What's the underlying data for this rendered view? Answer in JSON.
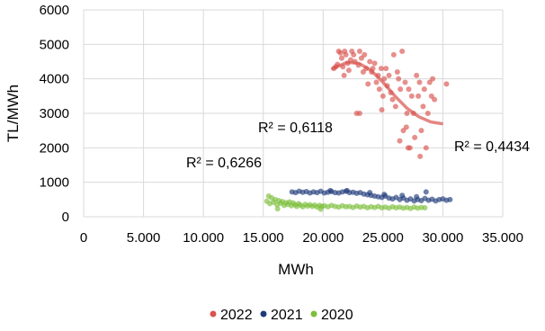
{
  "chart_data": {
    "type": "scatter",
    "title": "",
    "xlabel": "MWh",
    "ylabel": "TL/MWh",
    "xlim": [
      0,
      35000
    ],
    "ylim": [
      0,
      6000
    ],
    "x_ticks": [
      0,
      5000,
      10000,
      15000,
      20000,
      25000,
      30000,
      35000
    ],
    "x_tick_labels": [
      "0",
      "5.000",
      "10.000",
      "15.000",
      "20.000",
      "25.000",
      "30.000",
      "35.000"
    ],
    "y_ticks": [
      0,
      1000,
      2000,
      3000,
      4000,
      5000,
      6000
    ],
    "y_tick_labels": [
      "0",
      "1000",
      "2000",
      "3000",
      "4000",
      "5000",
      "6000"
    ],
    "grid": "vertical and horizontal",
    "legend_position": "bottom",
    "series": [
      {
        "name": "2022",
        "color": "#d9534f",
        "points": [
          [
            20900,
            4300
          ],
          [
            21050,
            4350
          ],
          [
            21200,
            4420
          ],
          [
            21300,
            4800
          ],
          [
            21450,
            4750
          ],
          [
            21550,
            4600
          ],
          [
            21650,
            4350
          ],
          [
            21800,
            4800
          ],
          [
            21900,
            4700
          ],
          [
            22050,
            4450
          ],
          [
            22150,
            4250
          ],
          [
            22300,
            4550
          ],
          [
            22400,
            4800
          ],
          [
            22550,
            4700
          ],
          [
            22650,
            4500
          ],
          [
            22800,
            3000
          ],
          [
            22950,
            4400
          ],
          [
            23050,
            4800
          ],
          [
            23200,
            4600
          ],
          [
            23350,
            4200
          ],
          [
            23450,
            4700
          ],
          [
            23600,
            4300
          ],
          [
            23750,
            3850
          ],
          [
            23900,
            4500
          ],
          [
            24050,
            4200
          ],
          [
            24150,
            4300
          ],
          [
            24300,
            4450
          ],
          [
            24450,
            3900
          ],
          [
            24600,
            4100
          ],
          [
            24700,
            3700
          ],
          [
            24850,
            4300
          ],
          [
            25000,
            3500
          ],
          [
            25100,
            4000
          ],
          [
            25250,
            4300
          ],
          [
            25350,
            3800
          ],
          [
            25500,
            4100
          ],
          [
            25650,
            3600
          ],
          [
            25800,
            3400
          ],
          [
            25900,
            4700
          ],
          [
            26050,
            3200
          ],
          [
            26200,
            4200
          ],
          [
            26300,
            4000
          ],
          [
            26450,
            3700
          ],
          [
            26600,
            4800
          ],
          [
            26700,
            2500
          ],
          [
            26850,
            3900
          ],
          [
            27000,
            3000
          ],
          [
            27150,
            3700
          ],
          [
            27250,
            2000
          ],
          [
            27400,
            3500
          ],
          [
            27550,
            3000
          ],
          [
            27650,
            2300
          ],
          [
            27800,
            4100
          ],
          [
            27950,
            3500
          ],
          [
            28050,
            3900
          ],
          [
            28200,
            2500
          ],
          [
            28350,
            3200
          ],
          [
            28450,
            3700
          ],
          [
            28600,
            2000
          ],
          [
            28750,
            3000
          ],
          [
            28900,
            3900
          ],
          [
            29050,
            3500
          ],
          [
            29150,
            4000
          ],
          [
            29300,
            3400
          ],
          [
            30300,
            3850
          ],
          [
            28100,
            1750
          ],
          [
            26400,
            2200
          ],
          [
            27100,
            2000
          ],
          [
            23050,
            3000
          ],
          [
            21750,
            4100
          ],
          [
            24900,
            3100
          ],
          [
            26950,
            2600
          ]
        ],
        "trendline": [
          [
            20800,
            4300
          ],
          [
            22000,
            4480
          ],
          [
            23000,
            4450
          ],
          [
            24000,
            4250
          ],
          [
            25000,
            3900
          ],
          [
            26000,
            3500
          ],
          [
            27000,
            3150
          ],
          [
            28000,
            2900
          ],
          [
            29000,
            2750
          ],
          [
            29900,
            2700
          ]
        ],
        "r2_label": "R² = 0,4434"
      },
      {
        "name": "2021",
        "color": "#1f3a7a",
        "points": [
          [
            17400,
            720
          ],
          [
            17700,
            700
          ],
          [
            18000,
            740
          ],
          [
            18300,
            710
          ],
          [
            18600,
            730
          ],
          [
            18900,
            690
          ],
          [
            19200,
            720
          ],
          [
            19500,
            700
          ],
          [
            19800,
            740
          ],
          [
            20100,
            690
          ],
          [
            20400,
            710
          ],
          [
            20700,
            730
          ],
          [
            21000,
            700
          ],
          [
            21300,
            690
          ],
          [
            21600,
            720
          ],
          [
            21900,
            740
          ],
          [
            22200,
            700
          ],
          [
            22500,
            710
          ],
          [
            22800,
            680
          ],
          [
            23100,
            700
          ],
          [
            23400,
            660
          ],
          [
            23700,
            640
          ],
          [
            24000,
            620
          ],
          [
            24300,
            600
          ],
          [
            24600,
            580
          ],
          [
            24900,
            560
          ],
          [
            25200,
            600
          ],
          [
            25500,
            540
          ],
          [
            25800,
            520
          ],
          [
            26100,
            560
          ],
          [
            26400,
            500
          ],
          [
            26700,
            540
          ],
          [
            27000,
            480
          ],
          [
            27300,
            520
          ],
          [
            27600,
            460
          ],
          [
            27900,
            500
          ],
          [
            28200,
            470
          ],
          [
            28500,
            530
          ],
          [
            28800,
            480
          ],
          [
            29100,
            510
          ],
          [
            29400,
            460
          ],
          [
            29700,
            500
          ],
          [
            30000,
            520
          ],
          [
            30300,
            480
          ],
          [
            30600,
            500
          ],
          [
            23900,
            700
          ],
          [
            25100,
            650
          ],
          [
            26600,
            620
          ],
          [
            27800,
            580
          ],
          [
            28600,
            720
          ],
          [
            22000,
            760
          ],
          [
            20600,
            760
          ]
        ],
        "trendline": [],
        "r2_label": "R² = 0,6118"
      },
      {
        "name": "2020",
        "color": "#7dbf3a",
        "points": [
          [
            15300,
            450
          ],
          [
            15450,
            600
          ],
          [
            15550,
            380
          ],
          [
            15700,
            550
          ],
          [
            15850,
            420
          ],
          [
            16000,
            500
          ],
          [
            16150,
            350
          ],
          [
            16300,
            470
          ],
          [
            16450,
            390
          ],
          [
            16600,
            440
          ],
          [
            16750,
            330
          ],
          [
            16900,
            410
          ],
          [
            17050,
            360
          ],
          [
            17200,
            430
          ],
          [
            17350,
            320
          ],
          [
            17500,
            400
          ],
          [
            17650,
            350
          ],
          [
            17800,
            300
          ],
          [
            17950,
            380
          ],
          [
            18100,
            340
          ],
          [
            18300,
            290
          ],
          [
            18500,
            360
          ],
          [
            18700,
            310
          ],
          [
            18900,
            350
          ],
          [
            19100,
            300
          ],
          [
            19300,
            340
          ],
          [
            19500,
            280
          ],
          [
            19700,
            330
          ],
          [
            19900,
            300
          ],
          [
            20100,
            320
          ],
          [
            20400,
            290
          ],
          [
            20700,
            330
          ],
          [
            21000,
            300
          ],
          [
            21300,
            280
          ],
          [
            21600,
            320
          ],
          [
            21900,
            290
          ],
          [
            22200,
            300
          ],
          [
            22500,
            270
          ],
          [
            22800,
            310
          ],
          [
            23100,
            280
          ],
          [
            23400,
            300
          ],
          [
            23700,
            260
          ],
          [
            24000,
            290
          ],
          [
            24300,
            270
          ],
          [
            24600,
            300
          ],
          [
            24900,
            260
          ],
          [
            25200,
            280
          ],
          [
            25500,
            250
          ],
          [
            25800,
            290
          ],
          [
            26100,
            260
          ],
          [
            26400,
            280
          ],
          [
            26700,
            250
          ],
          [
            27000,
            270
          ],
          [
            27300,
            240
          ],
          [
            27600,
            280
          ],
          [
            27900,
            250
          ],
          [
            28200,
            270
          ],
          [
            28500,
            260
          ],
          [
            16200,
            230
          ],
          [
            19800,
            220
          ]
        ],
        "trendline": [],
        "r2_label": "R² = 0,6266"
      }
    ]
  }
}
